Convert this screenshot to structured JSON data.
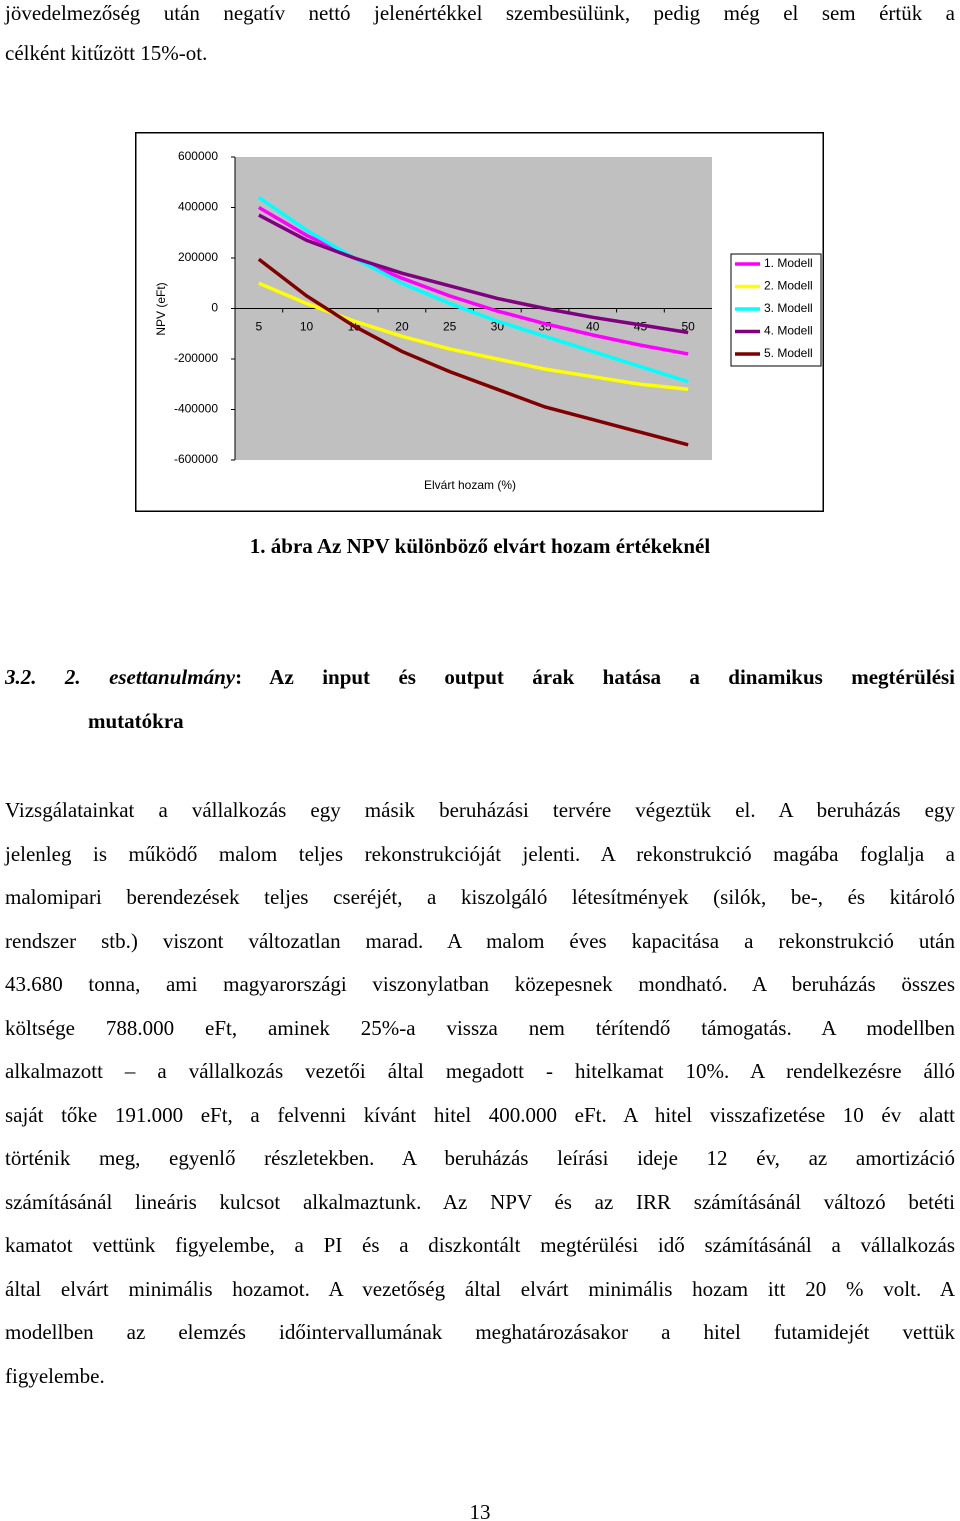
{
  "intro": {
    "lines": [
      "jövedelmezőség után negatív nettó jelenértékkel szembesülünk, pedig még el sem értük a",
      "célként kitűzött 15%-ot."
    ]
  },
  "chart_data": {
    "type": "line",
    "y_label": "NPV (eFt)",
    "x_label": "Elvárt hozam (%)",
    "categories": [
      "5",
      "10",
      "15",
      "20",
      "25",
      "30",
      "35",
      "40",
      "45",
      "50"
    ],
    "ylim": [
      -600000,
      600000
    ],
    "yticks": [
      -600000,
      -400000,
      -200000,
      0,
      200000,
      400000,
      600000
    ],
    "grid": false,
    "legend": "right",
    "series": [
      {
        "name": "1. Modell",
        "color": "#ff00ff",
        "values": [
          400000,
          290000,
          200000,
          120000,
          50000,
          -10000,
          -60000,
          -105000,
          -145000,
          -180000
        ]
      },
      {
        "name": "2. Modell",
        "color": "#ffff00",
        "values": [
          100000,
          20000,
          -50000,
          -110000,
          -160000,
          -200000,
          -240000,
          -270000,
          -300000,
          -320000
        ]
      },
      {
        "name": "3. Modell",
        "color": "#00ffff",
        "values": [
          440000,
          310000,
          200000,
          100000,
          20000,
          -50000,
          -110000,
          -170000,
          -230000,
          -290000
        ]
      },
      {
        "name": "4. Modell",
        "color": "#800080",
        "values": [
          370000,
          270000,
          200000,
          140000,
          90000,
          40000,
          0,
          -35000,
          -65000,
          -95000
        ]
      },
      {
        "name": "5. Modell",
        "color": "#800000",
        "values": [
          195000,
          50000,
          -70000,
          -170000,
          -250000,
          -320000,
          -390000,
          -440000,
          -490000,
          -540000
        ]
      }
    ]
  },
  "caption": "1. ábra Az NPV különböző elvárt hozam értékeknél",
  "heading": {
    "prefix": "3.2. 2.",
    "emphasis": "esettanulmány",
    "line1_rest": ": Az input és output árak hatása a dinamikus megtérülési",
    "line2": "mutatókra"
  },
  "body": {
    "lines": [
      "Vizsgálatainkat a vállalkozás egy másik beruházási tervére végeztük el. A beruházás egy",
      "jelenleg is működő malom teljes rekonstrukcióját jelenti. A rekonstrukció magába foglalja a",
      "malomipari berendezések teljes cseréjét, a kiszolgáló létesítmények (silók, be-, és kitároló",
      "rendszer stb.) viszont változatlan marad. A malom éves kapacitása a rekonstrukció után",
      "43.680 tonna, ami magyarországi viszonylatban közepesnek mondható. A beruházás összes",
      "költsége 788.000 eFt, aminek 25%-a vissza nem térítendő támogatás. A modellben",
      "alkalmazott – a vállalkozás vezetői által megadott - hitelkamat 10%. A rendelkezésre álló",
      "saját tőke 191.000 eFt, a felvenni kívánt hitel 400.000 eFt. A hitel visszafizetése 10 év alatt",
      "történik meg, egyenlő részletekben. A beruházás leírási ideje 12 év, az amortizáció",
      "számításánál lineáris kulcsot alkalmaztunk. Az NPV és az IRR számításánál változó betéti",
      "kamatot vettünk figyelembe, a PI és a diszkontált megtérülési idő számításánál a vállalkozás",
      "által elvárt minimális hozamot.  A vezetőség által elvárt minimális hozam itt 20 % volt. A",
      "modellben az elemzés időintervallumának meghatározásakor a hitel futamidejét vettük",
      "figyelembe."
    ]
  },
  "page_number": "13"
}
